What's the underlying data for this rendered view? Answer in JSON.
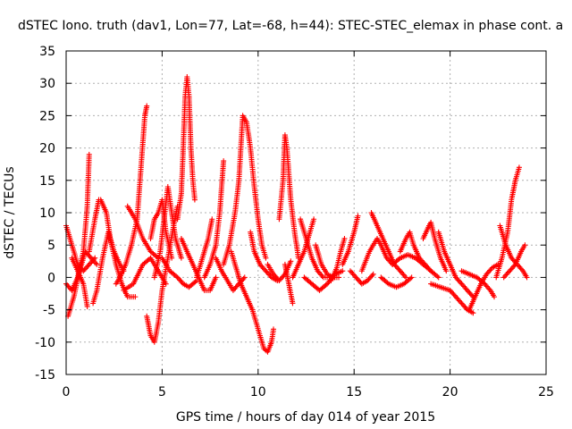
{
  "chart_data": {
    "type": "scatter",
    "title": "dSTEC Iono. truth (dav1, Lon=77, Lat=-68, h=44): STEC-STEC_elemax in phase cont. a",
    "xlabel": "GPS time / hours of day 014 of year 2015",
    "ylabel": "dSTEC  / TECUs",
    "xlim": [
      0,
      25
    ],
    "ylim": [
      -15,
      35
    ],
    "xticks": [
      0,
      5,
      10,
      15,
      20,
      25
    ],
    "yticks": [
      -15,
      -10,
      -5,
      0,
      5,
      10,
      15,
      20,
      25,
      30,
      35
    ],
    "grid": true,
    "marker": "plus",
    "color": "#ff0000",
    "tracks": [
      [
        [
          0.0,
          8.0
        ],
        [
          0.3,
          5.0
        ],
        [
          0.6,
          2.0
        ],
        [
          0.9,
          1.0
        ],
        [
          1.2,
          2.0
        ],
        [
          1.5,
          3.0
        ]
      ],
      [
        [
          0.0,
          -1.0
        ],
        [
          0.3,
          -2.0
        ],
        [
          0.6,
          0.0
        ],
        [
          0.9,
          4.0
        ],
        [
          1.1,
          11.0
        ],
        [
          1.2,
          19.0
        ]
      ],
      [
        [
          0.1,
          -6.0
        ],
        [
          0.4,
          -3.0
        ],
        [
          0.7,
          1.0
        ],
        [
          1.0,
          4.0
        ],
        [
          1.3,
          3.0
        ],
        [
          1.6,
          2.0
        ]
      ],
      [
        [
          0.3,
          3.0
        ],
        [
          0.6,
          1.0
        ],
        [
          0.9,
          -1.0
        ],
        [
          1.1,
          -4.5
        ]
      ],
      [
        [
          1.4,
          -4.0
        ],
        [
          1.6,
          -2.0
        ],
        [
          1.9,
          3.0
        ],
        [
          2.2,
          7.0
        ],
        [
          2.5,
          4.0
        ],
        [
          2.8,
          2.0
        ],
        [
          3.0,
          1.0
        ]
      ],
      [
        [
          1.2,
          4.0
        ],
        [
          1.5,
          9.0
        ],
        [
          1.7,
          12.0
        ]
      ],
      [
        [
          1.8,
          12.0
        ],
        [
          2.1,
          10.0
        ],
        [
          2.3,
          6.0
        ],
        [
          2.6,
          2.0
        ],
        [
          2.9,
          -1.0
        ],
        [
          3.2,
          -3.0
        ],
        [
          3.6,
          -3.0
        ]
      ],
      [
        [
          2.6,
          -1.0
        ],
        [
          2.8,
          0.0
        ],
        [
          3.1,
          2.0
        ],
        [
          3.4,
          5.0
        ],
        [
          3.7,
          9.0
        ],
        [
          3.9,
          17.0
        ],
        [
          4.1,
          25.0
        ],
        [
          4.2,
          26.5
        ]
      ],
      [
        [
          3.0,
          -2.0
        ],
        [
          3.5,
          -1.0
        ],
        [
          4.0,
          2.0
        ],
        [
          4.4,
          3.0
        ],
        [
          4.8,
          1.0
        ],
        [
          5.2,
          -1.0
        ]
      ],
      [
        [
          3.2,
          11.0
        ],
        [
          3.6,
          9.0
        ],
        [
          4.0,
          6.0
        ],
        [
          4.4,
          4.0
        ],
        [
          4.8,
          3.0
        ]
      ],
      [
        [
          4.2,
          -6.0
        ],
        [
          4.4,
          -9.0
        ],
        [
          4.6,
          -10.0
        ],
        [
          4.8,
          -7.0
        ],
        [
          5.0,
          -2.0
        ],
        [
          5.3,
          3.0
        ],
        [
          5.6,
          8.0
        ],
        [
          5.8,
          11.0
        ]
      ],
      [
        [
          4.6,
          0.0
        ],
        [
          4.9,
          4.0
        ],
        [
          5.1,
          9.0
        ],
        [
          5.3,
          14.0
        ],
        [
          5.5,
          10.0
        ],
        [
          5.7,
          6.0
        ],
        [
          6.0,
          3.0
        ]
      ],
      [
        [
          4.4,
          6.0
        ],
        [
          4.6,
          9.0
        ],
        [
          4.8,
          10.0
        ],
        [
          5.0,
          12.0
        ],
        [
          5.2,
          7.0
        ],
        [
          5.5,
          3.0
        ]
      ],
      [
        [
          5.0,
          3.0
        ],
        [
          5.4,
          1.0
        ],
        [
          5.8,
          0.0
        ],
        [
          6.1,
          -1.0
        ],
        [
          6.4,
          -1.5
        ],
        [
          6.8,
          -0.5
        ]
      ],
      [
        [
          5.8,
          9.0
        ],
        [
          6.0,
          13.0
        ],
        [
          6.1,
          20.0
        ],
        [
          6.2,
          28.0
        ],
        [
          6.3,
          31.0
        ],
        [
          6.4,
          28.0
        ],
        [
          6.5,
          20.0
        ],
        [
          6.6,
          15.0
        ],
        [
          6.7,
          12.0
        ]
      ],
      [
        [
          6.0,
          6.0
        ],
        [
          6.3,
          4.0
        ],
        [
          6.6,
          2.0
        ],
        [
          6.9,
          0.0
        ],
        [
          7.2,
          -2.0
        ],
        [
          7.5,
          -2.0
        ],
        [
          7.8,
          0.0
        ]
      ],
      [
        [
          6.8,
          0.0
        ],
        [
          7.1,
          3.0
        ],
        [
          7.4,
          6.0
        ],
        [
          7.6,
          9.0
        ]
      ],
      [
        [
          7.2,
          0.0
        ],
        [
          7.5,
          2.0
        ],
        [
          7.8,
          5.0
        ],
        [
          8.0,
          10.0
        ],
        [
          8.1,
          14.0
        ],
        [
          8.2,
          18.0
        ]
      ],
      [
        [
          7.8,
          3.0
        ],
        [
          8.1,
          1.0
        ],
        [
          8.4,
          -0.5
        ],
        [
          8.7,
          -2.0
        ],
        [
          9.0,
          -1.0
        ],
        [
          9.3,
          0.0
        ]
      ],
      [
        [
          8.2,
          2.0
        ],
        [
          8.5,
          5.0
        ],
        [
          8.8,
          10.0
        ],
        [
          9.0,
          15.0
        ],
        [
          9.1,
          20.0
        ],
        [
          9.2,
          25.0
        ],
        [
          9.4,
          24.0
        ],
        [
          9.6,
          20.0
        ],
        [
          9.8,
          14.0
        ],
        [
          10.0,
          9.0
        ],
        [
          10.2,
          5.0
        ],
        [
          10.4,
          3.0
        ]
      ],
      [
        [
          8.6,
          4.0
        ],
        [
          8.8,
          2.0
        ],
        [
          9.1,
          -1.0
        ],
        [
          9.4,
          -3.0
        ],
        [
          9.7,
          -5.0
        ],
        [
          9.9,
          -7.0
        ],
        [
          10.1,
          -9.0
        ],
        [
          10.3,
          -11.0
        ],
        [
          10.5,
          -11.5
        ],
        [
          10.7,
          -10.0
        ],
        [
          10.8,
          -8.0
        ]
      ],
      [
        [
          9.6,
          7.0
        ],
        [
          9.8,
          4.0
        ],
        [
          10.1,
          2.0
        ],
        [
          10.4,
          1.0
        ],
        [
          10.7,
          0.0
        ],
        [
          11.0,
          -0.5
        ]
      ],
      [
        [
          10.5,
          2.0
        ],
        [
          10.8,
          0.5
        ],
        [
          11.1,
          -0.5
        ],
        [
          11.4,
          0.5
        ],
        [
          11.7,
          2.5
        ]
      ],
      [
        [
          11.1,
          9.0
        ],
        [
          11.3,
          15.0
        ],
        [
          11.4,
          22.0
        ],
        [
          11.5,
          20.0
        ],
        [
          11.7,
          12.0
        ],
        [
          11.9,
          7.0
        ],
        [
          12.1,
          3.0
        ]
      ],
      [
        [
          11.4,
          2.0
        ],
        [
          11.6,
          -1.0
        ],
        [
          11.8,
          -4.0
        ]
      ],
      [
        [
          11.8,
          0.0
        ],
        [
          12.1,
          2.0
        ],
        [
          12.4,
          4.0
        ],
        [
          12.7,
          7.0
        ],
        [
          12.9,
          9.0
        ]
      ],
      [
        [
          12.2,
          9.0
        ],
        [
          12.5,
          6.0
        ],
        [
          12.8,
          3.0
        ],
        [
          13.1,
          1.0
        ],
        [
          13.4,
          0.0
        ],
        [
          13.7,
          0.0
        ],
        [
          14.0,
          0.0
        ]
      ],
      [
        [
          12.4,
          0.0
        ],
        [
          12.8,
          -1.0
        ],
        [
          13.2,
          -2.0
        ],
        [
          13.6,
          -1.0
        ],
        [
          14.0,
          0.5
        ],
        [
          14.4,
          1.0
        ]
      ],
      [
        [
          13.0,
          5.0
        ],
        [
          13.3,
          2.0
        ],
        [
          13.6,
          0.5
        ],
        [
          13.9,
          0.0
        ],
        [
          14.2,
          0.0
        ]
      ],
      [
        [
          13.8,
          -0.5
        ],
        [
          14.1,
          1.5
        ],
        [
          14.3,
          4.0
        ],
        [
          14.5,
          6.0
        ]
      ],
      [
        [
          14.4,
          2.0
        ],
        [
          14.7,
          4.0
        ],
        [
          15.0,
          7.0
        ],
        [
          15.2,
          9.5
        ]
      ],
      [
        [
          14.8,
          1.0
        ],
        [
          15.1,
          0.0
        ],
        [
          15.4,
          -1.0
        ],
        [
          15.7,
          -0.5
        ],
        [
          16.0,
          0.5
        ]
      ],
      [
        [
          15.4,
          1.0
        ],
        [
          15.8,
          4.0
        ],
        [
          16.2,
          6.0
        ],
        [
          16.4,
          5.0
        ],
        [
          16.7,
          3.0
        ],
        [
          17.0,
          2.0
        ]
      ],
      [
        [
          15.9,
          10.0
        ],
        [
          16.2,
          8.0
        ],
        [
          16.5,
          6.0
        ],
        [
          16.8,
          4.0
        ],
        [
          17.1,
          2.0
        ],
        [
          17.4,
          1.0
        ],
        [
          17.7,
          0.0
        ]
      ],
      [
        [
          16.4,
          0.0
        ],
        [
          16.8,
          -1.0
        ],
        [
          17.2,
          -1.5
        ],
        [
          17.6,
          -1.0
        ],
        [
          18.0,
          0.0
        ]
      ],
      [
        [
          17.4,
          4.0
        ],
        [
          17.7,
          6.0
        ],
        [
          17.9,
          7.0
        ],
        [
          18.1,
          5.0
        ],
        [
          18.4,
          3.0
        ],
        [
          18.7,
          2.0
        ],
        [
          19.0,
          1.0
        ]
      ],
      [
        [
          17.0,
          2.0
        ],
        [
          17.4,
          3.0
        ],
        [
          17.8,
          3.5
        ],
        [
          18.2,
          3.0
        ],
        [
          18.6,
          2.0
        ],
        [
          19.0,
          1.0
        ],
        [
          19.4,
          0.0
        ]
      ],
      [
        [
          18.6,
          6.0
        ],
        [
          18.9,
          8.0
        ],
        [
          19.0,
          8.5
        ],
        [
          19.2,
          6.0
        ],
        [
          19.5,
          3.0
        ],
        [
          19.8,
          1.0
        ]
      ],
      [
        [
          19.0,
          -1.0
        ],
        [
          19.5,
          -1.5
        ],
        [
          20.0,
          -2.0
        ],
        [
          20.3,
          -3.0
        ],
        [
          20.6,
          -4.0
        ],
        [
          20.9,
          -5.0
        ],
        [
          21.2,
          -5.5
        ]
      ],
      [
        [
          19.4,
          7.0
        ],
        [
          19.7,
          4.0
        ],
        [
          20.0,
          2.0
        ],
        [
          20.3,
          0.0
        ],
        [
          20.6,
          -1.0
        ],
        [
          20.9,
          -2.0
        ],
        [
          21.2,
          -3.0
        ]
      ],
      [
        [
          20.6,
          1.0
        ],
        [
          21.0,
          0.5
        ],
        [
          21.4,
          0.0
        ],
        [
          21.8,
          -1.0
        ],
        [
          22.1,
          -2.0
        ],
        [
          22.3,
          -3.0
        ]
      ],
      [
        [
          21.0,
          -5.0
        ],
        [
          21.3,
          -3.0
        ],
        [
          21.6,
          -1.0
        ],
        [
          21.9,
          0.5
        ],
        [
          22.2,
          1.5
        ],
        [
          22.5,
          2.0
        ]
      ],
      [
        [
          22.6,
          8.0
        ],
        [
          22.9,
          5.0
        ],
        [
          23.2,
          3.0
        ],
        [
          23.5,
          2.0
        ],
        [
          23.8,
          1.0
        ],
        [
          24.0,
          0.0
        ]
      ],
      [
        [
          22.4,
          0.0
        ],
        [
          22.7,
          3.0
        ],
        [
          23.0,
          7.0
        ],
        [
          23.2,
          12.0
        ],
        [
          23.4,
          15.0
        ],
        [
          23.6,
          17.0
        ]
      ],
      [
        [
          22.8,
          0.0
        ],
        [
          23.1,
          1.0
        ],
        [
          23.4,
          2.0
        ],
        [
          23.7,
          4.0
        ],
        [
          23.9,
          5.0
        ]
      ]
    ]
  }
}
